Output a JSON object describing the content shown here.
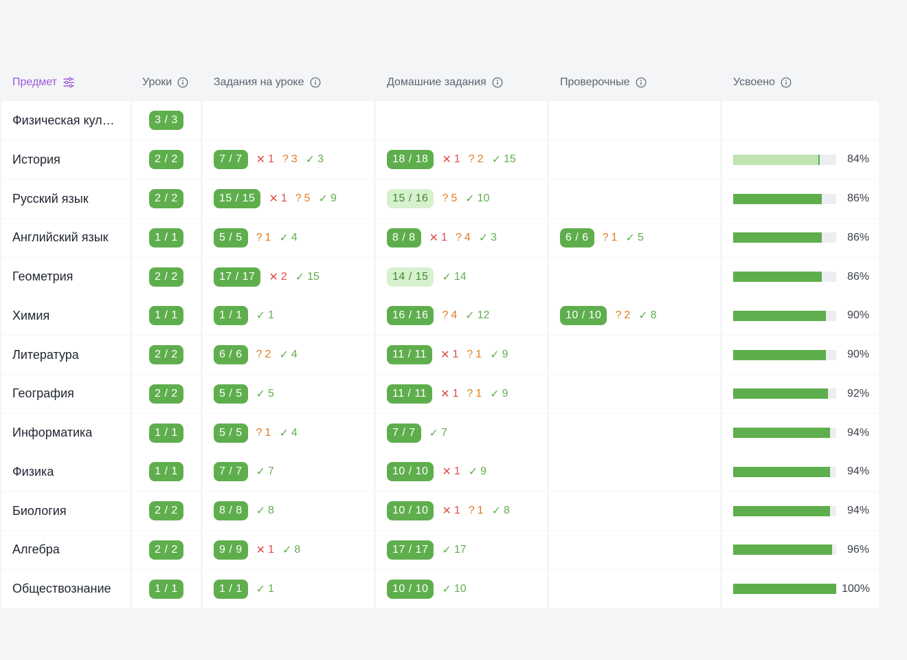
{
  "header": {
    "subject": "Предмет",
    "lessons": "Уроки",
    "tasks": "Задания на уроке",
    "homework": "Домашние задания",
    "tests": "Проверочные",
    "mastered": "Усвоено"
  },
  "colors": {
    "accent": "#9b59d8",
    "green": "#5fae4d",
    "light_green": "#d7f0ce",
    "error": "#e04b4b",
    "question": "#e07a1f"
  },
  "rows": [
    {
      "subject": "Физическая кул…",
      "lessons": "3 / 3",
      "tasks": null,
      "homework": null,
      "tests": null,
      "mastered": null
    },
    {
      "subject": "История",
      "lessons": "2 / 2",
      "tasks": {
        "pill": "7 / 7",
        "err": "1",
        "q": "3",
        "ok": "3"
      },
      "homework": {
        "pill": "18 / 18",
        "err": "1",
        "q": "2",
        "ok": "15"
      },
      "tests": null,
      "mastered": {
        "pct": 84,
        "label": "84%",
        "light": true
      }
    },
    {
      "subject": "Русский язык",
      "lessons": "2 / 2",
      "tasks": {
        "pill": "15 / 15",
        "err": "1",
        "q": "5",
        "ok": "9"
      },
      "homework": {
        "pill": "15 / 16",
        "light": true,
        "q": "5",
        "ok": "10"
      },
      "tests": null,
      "mastered": {
        "pct": 86,
        "label": "86%"
      }
    },
    {
      "subject": "Английский язык",
      "lessons": "1 / 1",
      "tasks": {
        "pill": "5 / 5",
        "q": "1",
        "ok": "4"
      },
      "homework": {
        "pill": "8 / 8",
        "err": "1",
        "q": "4",
        "ok": "3"
      },
      "tests": {
        "pill": "6 / 6",
        "q": "1",
        "ok": "5"
      },
      "mastered": {
        "pct": 86,
        "label": "86%"
      }
    },
    {
      "subject": "Геометрия",
      "lessons": "2 / 2",
      "tasks": {
        "pill": "17 / 17",
        "err": "2",
        "ok": "15"
      },
      "homework": {
        "pill": "14 / 15",
        "light": true,
        "ok": "14"
      },
      "tests": null,
      "mastered": {
        "pct": 86,
        "label": "86%"
      }
    },
    {
      "subject": "Химия",
      "lessons": "1 / 1",
      "tasks": {
        "pill": "1 / 1",
        "ok": "1"
      },
      "homework": {
        "pill": "16 / 16",
        "q": "4",
        "ok": "12"
      },
      "tests": {
        "pill": "10 / 10",
        "q": "2",
        "ok": "8"
      },
      "mastered": {
        "pct": 90,
        "label": "90%"
      }
    },
    {
      "subject": "Литература",
      "lessons": "2 / 2",
      "tasks": {
        "pill": "6 / 6",
        "q": "2",
        "ok": "4"
      },
      "homework": {
        "pill": "11 / 11",
        "err": "1",
        "q": "1",
        "ok": "9"
      },
      "tests": null,
      "mastered": {
        "pct": 90,
        "label": "90%"
      }
    },
    {
      "subject": "География",
      "lessons": "2 / 2",
      "tasks": {
        "pill": "5 / 5",
        "ok": "5"
      },
      "homework": {
        "pill": "11 / 11",
        "err": "1",
        "q": "1",
        "ok": "9"
      },
      "tests": null,
      "mastered": {
        "pct": 92,
        "label": "92%"
      }
    },
    {
      "subject": "Информатика",
      "lessons": "1 / 1",
      "tasks": {
        "pill": "5 / 5",
        "q": "1",
        "ok": "4"
      },
      "homework": {
        "pill": "7 / 7",
        "ok": "7"
      },
      "tests": null,
      "mastered": {
        "pct": 94,
        "label": "94%"
      }
    },
    {
      "subject": "Физика",
      "lessons": "1 / 1",
      "tasks": {
        "pill": "7 / 7",
        "ok": "7"
      },
      "homework": {
        "pill": "10 / 10",
        "err": "1",
        "ok": "9"
      },
      "tests": null,
      "mastered": {
        "pct": 94,
        "label": "94%"
      }
    },
    {
      "subject": "Биология",
      "lessons": "2 / 2",
      "tasks": {
        "pill": "8 / 8",
        "ok": "8"
      },
      "homework": {
        "pill": "10 / 10",
        "err": "1",
        "q": "1",
        "ok": "8"
      },
      "tests": null,
      "mastered": {
        "pct": 94,
        "label": "94%"
      }
    },
    {
      "subject": "Алгебра",
      "lessons": "2 / 2",
      "tasks": {
        "pill": "9 / 9",
        "err": "1",
        "ok": "8"
      },
      "homework": {
        "pill": "17 / 17",
        "ok": "17"
      },
      "tests": null,
      "mastered": {
        "pct": 96,
        "label": "96%"
      }
    },
    {
      "subject": "Обществознание",
      "lessons": "1 / 1",
      "tasks": {
        "pill": "1 / 1",
        "ok": "1"
      },
      "homework": {
        "pill": "10 / 10",
        "ok": "10"
      },
      "tests": null,
      "mastered": {
        "pct": 100,
        "label": "100%"
      }
    }
  ]
}
